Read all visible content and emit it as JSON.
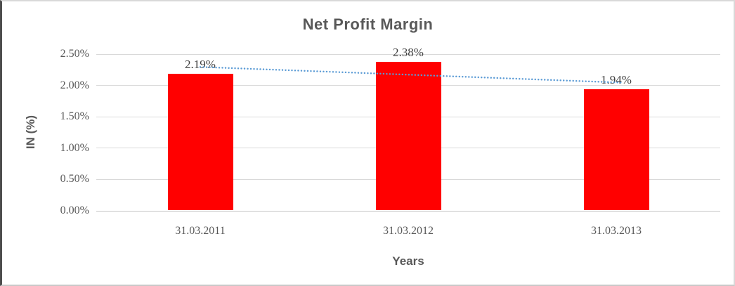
{
  "chart_data": {
    "type": "bar",
    "title": "Net Profit Margin",
    "xlabel": "Years",
    "ylabel": "IN (%)",
    "categories": [
      "31.03.2011",
      "31.03.2012",
      "31.03.2013"
    ],
    "values": [
      2.19,
      2.38,
      1.94
    ],
    "data_labels": [
      "2.19%",
      "2.38%",
      "1.94%"
    ],
    "y_ticks": [
      {
        "value": 0.0,
        "label": "0.00%"
      },
      {
        "value": 0.5,
        "label": "0.50%"
      },
      {
        "value": 1.0,
        "label": "1.00%"
      },
      {
        "value": 1.5,
        "label": "1.50%"
      },
      {
        "value": 2.0,
        "label": "2.00%"
      },
      {
        "value": 2.5,
        "label": "2.50%"
      }
    ],
    "ylim": [
      0,
      2.5
    ],
    "grid": "horizontal",
    "legend": "none",
    "bar_color": "#FF0000",
    "trendline": {
      "style": "dotted",
      "color": "#5B9BD5",
      "start_value_pct": 2.295,
      "end_value_pct": 2.045
    }
  },
  "colors": {
    "title_text": "#595959",
    "axis_text": "#595959",
    "data_label_text": "#404040",
    "gridline": "#D9D9D9"
  }
}
